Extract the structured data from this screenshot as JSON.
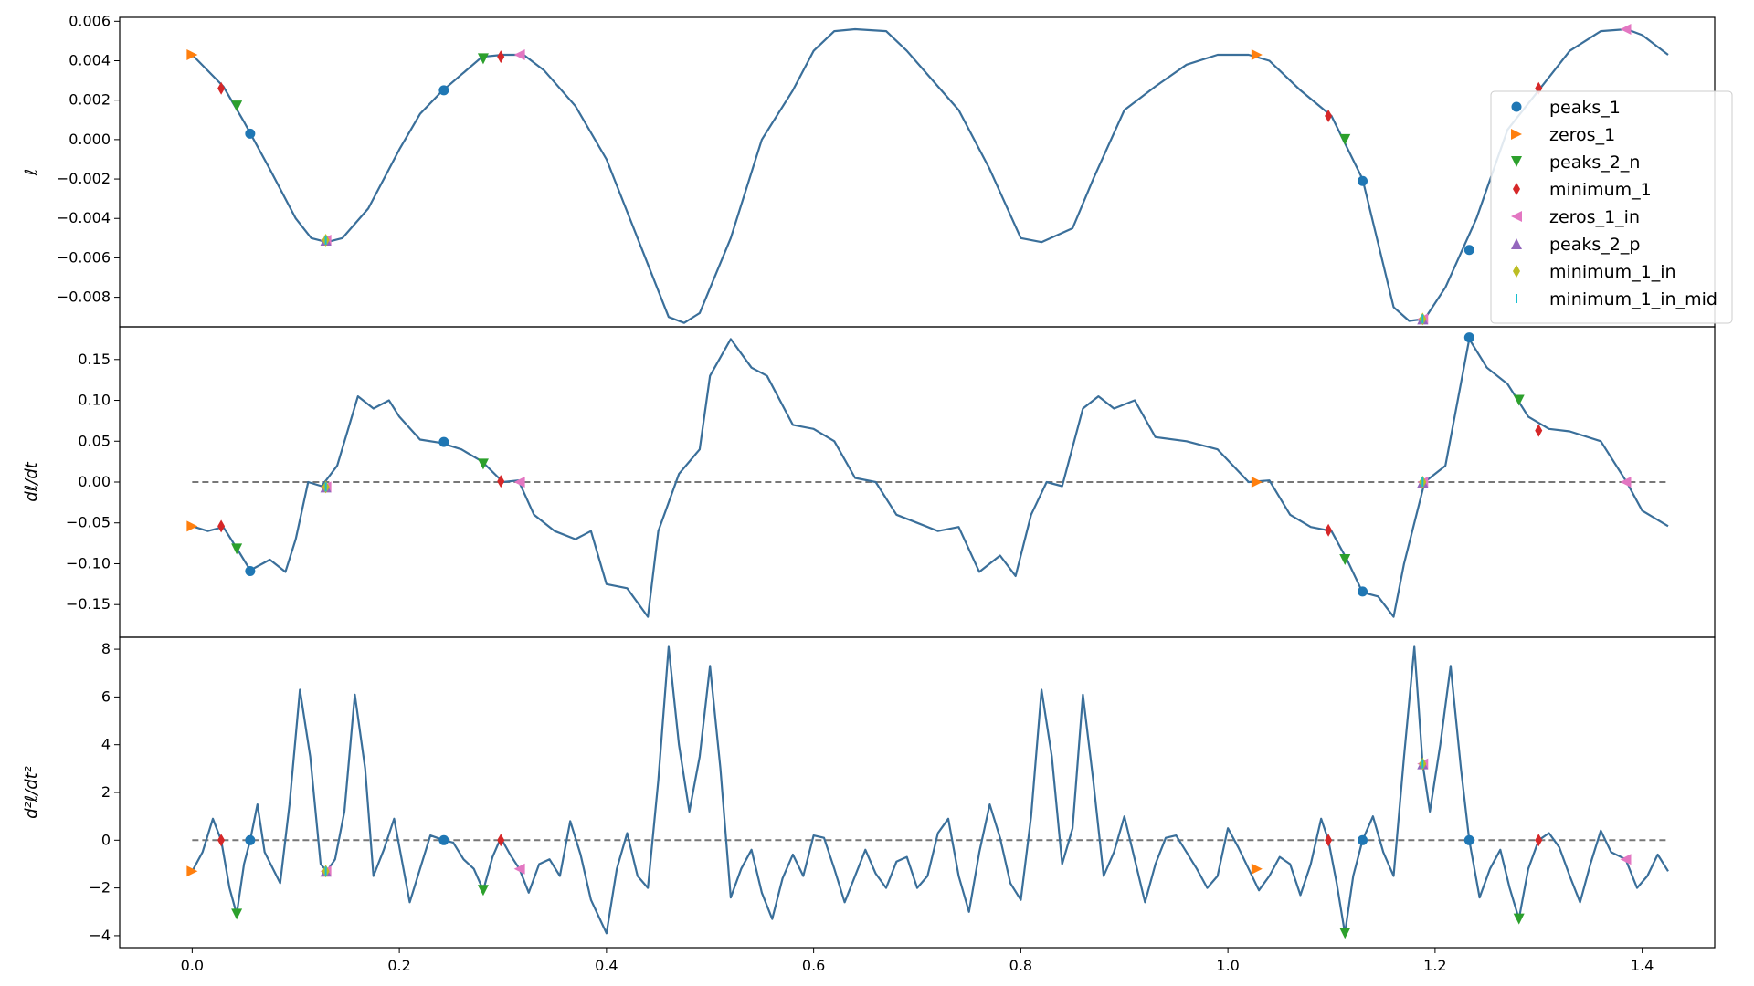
{
  "chart_data": [
    {
      "type": "line",
      "panel": "top",
      "ylabel": "ℓ",
      "xlim": [
        -0.07,
        1.47
      ],
      "ylim": [
        -0.0095,
        0.0062
      ],
      "yticks": [
        0.006,
        0.004,
        0.002,
        0.0,
        -0.002,
        -0.004,
        -0.006,
        -0.008
      ],
      "ytick_labels": [
        "0.006",
        "0.004",
        "0.002",
        "0.000",
        "−0.002",
        "−0.004",
        "−0.006",
        "−0.008"
      ],
      "legend_position": "right, middle",
      "series": [
        {
          "name": "",
          "color": "#3a6f9a",
          "x": [
            0.0,
            0.03,
            0.05,
            0.075,
            0.1,
            0.115,
            0.13,
            0.145,
            0.17,
            0.2,
            0.22,
            0.24,
            0.26,
            0.28,
            0.3,
            0.32,
            0.34,
            0.37,
            0.4,
            0.43,
            0.46,
            0.475,
            0.49,
            0.52,
            0.55,
            0.58,
            0.6,
            0.62,
            0.64,
            0.67,
            0.69,
            0.71,
            0.74,
            0.77,
            0.8,
            0.82,
            0.85,
            0.87,
            0.9,
            0.93,
            0.96,
            0.99,
            1.02,
            1.04,
            1.07,
            1.1,
            1.13,
            1.16,
            1.175,
            1.19,
            1.21,
            1.24,
            1.27,
            1.3,
            1.33,
            1.36,
            1.385,
            1.4,
            1.425
          ],
          "y": [
            0.0043,
            0.0027,
            0.0009,
            -0.0015,
            -0.004,
            -0.005,
            -0.0052,
            -0.005,
            -0.0035,
            -0.0005,
            0.0013,
            0.0024,
            0.0033,
            0.0042,
            0.0043,
            0.0043,
            0.0035,
            0.0017,
            -0.001,
            -0.005,
            -0.009,
            -0.0093,
            -0.0088,
            -0.005,
            0.0,
            0.0025,
            0.0045,
            0.0055,
            0.0056,
            0.0055,
            0.0045,
            0.0033,
            0.0015,
            -0.0015,
            -0.005,
            -0.0052,
            -0.0045,
            -0.002,
            0.0015,
            0.0027,
            0.0038,
            0.0043,
            0.0043,
            0.004,
            0.0025,
            0.0012,
            -0.002,
            -0.0085,
            -0.0092,
            -0.0091,
            -0.0075,
            -0.004,
            0.0005,
            0.0025,
            0.0045,
            0.0055,
            0.0056,
            0.0053,
            0.0043
          ]
        }
      ],
      "markers": [
        {
          "name": "peaks_1",
          "x": [
            0.056,
            0.243,
            1.13,
            1.233
          ],
          "y": [
            0.0003,
            0.0025,
            -0.0021,
            -0.0056
          ]
        },
        {
          "name": "zeros_1",
          "x": [
            0.0,
            1.028
          ],
          "y": [
            0.0043,
            0.0043
          ]
        },
        {
          "name": "peaks_2_n",
          "x": [
            0.043,
            0.281,
            1.113
          ],
          "y": [
            0.0017,
            0.0041,
            0.0
          ]
        },
        {
          "name": "minimum_1",
          "x": [
            0.028,
            0.298,
            1.097,
            1.3
          ],
          "y": [
            0.0026,
            0.0042,
            0.0012,
            0.0026
          ]
        },
        {
          "name": "zeros_1_in",
          "x": [
            0.316,
            1.384,
            0.129,
            1.188
          ],
          "y": [
            0.0043,
            0.0056,
            -0.0051,
            -0.0091
          ]
        },
        {
          "name": "peaks_2_p",
          "x": [
            0.129,
            1.188
          ],
          "y": [
            -0.0051,
            -0.0091
          ]
        },
        {
          "name": "minimum_1_in",
          "x": [
            0.129,
            1.188
          ],
          "y": [
            -0.0051,
            -0.0091
          ]
        },
        {
          "name": "minimum_1_in_mid",
          "x": [
            0.129,
            1.188
          ],
          "y": [
            -0.0051,
            -0.0091
          ]
        }
      ]
    },
    {
      "type": "line",
      "panel": "middle",
      "ylabel": "dℓ/dt",
      "xlim": [
        -0.07,
        1.47
      ],
      "ylim": [
        -0.19,
        0.19
      ],
      "yticks": [
        0.15,
        0.1,
        0.05,
        0.0,
        -0.05,
        -0.1,
        -0.15
      ],
      "ytick_labels": [
        "0.15",
        "0.10",
        "0.05",
        "0.00",
        "−0.05",
        "−0.10",
        "−0.15"
      ],
      "hline": {
        "y": 0.0,
        "style": "dashed",
        "x": [
          0.0,
          1.425
        ]
      },
      "series": [
        {
          "name": "",
          "color": "#3a6f9a",
          "x": [
            0.0,
            0.015,
            0.03,
            0.045,
            0.056,
            0.075,
            0.09,
            0.1,
            0.112,
            0.125,
            0.14,
            0.16,
            0.175,
            0.19,
            0.2,
            0.22,
            0.24,
            0.26,
            0.28,
            0.3,
            0.315,
            0.33,
            0.35,
            0.37,
            0.385,
            0.4,
            0.42,
            0.44,
            0.45,
            0.47,
            0.49,
            0.5,
            0.52,
            0.54,
            0.555,
            0.58,
            0.6,
            0.62,
            0.64,
            0.66,
            0.68,
            0.7,
            0.72,
            0.74,
            0.76,
            0.78,
            0.795,
            0.81,
            0.825,
            0.84,
            0.86,
            0.875,
            0.89,
            0.91,
            0.93,
            0.96,
            0.99,
            1.02,
            1.04,
            1.06,
            1.08,
            1.1,
            1.115,
            1.13,
            1.145,
            1.16,
            1.17,
            1.19,
            1.21,
            1.233,
            1.25,
            1.27,
            1.29,
            1.31,
            1.33,
            1.36,
            1.385,
            1.4,
            1.425
          ],
          "y": [
            -0.054,
            -0.06,
            -0.055,
            -0.085,
            -0.108,
            -0.095,
            -0.11,
            -0.07,
            0.0,
            -0.005,
            0.02,
            0.105,
            0.09,
            0.1,
            0.08,
            0.052,
            0.048,
            0.04,
            0.025,
            0.0,
            0.002,
            -0.04,
            -0.06,
            -0.07,
            -0.06,
            -0.125,
            -0.13,
            -0.165,
            -0.06,
            0.01,
            0.04,
            0.13,
            0.175,
            0.14,
            0.13,
            0.07,
            0.065,
            0.05,
            0.005,
            0.0,
            -0.04,
            -0.05,
            -0.06,
            -0.055,
            -0.11,
            -0.09,
            -0.115,
            -0.04,
            0.0,
            -0.005,
            0.09,
            0.105,
            0.09,
            0.1,
            0.055,
            0.05,
            0.04,
            0.0,
            0.002,
            -0.04,
            -0.055,
            -0.06,
            -0.095,
            -0.135,
            -0.14,
            -0.165,
            -0.1,
            0.0,
            0.02,
            0.175,
            0.14,
            0.12,
            0.08,
            0.065,
            0.062,
            0.05,
            0.0,
            -0.035,
            -0.054
          ]
        }
      ],
      "markers": [
        {
          "name": "peaks_1",
          "x": [
            0.056,
            0.243,
            1.13,
            1.233
          ],
          "y": [
            -0.109,
            0.049,
            -0.134,
            0.177
          ]
        },
        {
          "name": "zeros_1",
          "x": [
            0.0,
            1.028
          ],
          "y": [
            -0.054,
            0.0
          ]
        },
        {
          "name": "peaks_2_n",
          "x": [
            0.043,
            0.281,
            1.113,
            1.281
          ],
          "y": [
            -0.082,
            0.022,
            -0.095,
            0.1
          ]
        },
        {
          "name": "minimum_1",
          "x": [
            0.028,
            0.298,
            1.097,
            1.3
          ],
          "y": [
            -0.054,
            0.001,
            -0.059,
            0.063
          ]
        },
        {
          "name": "zeros_1_in",
          "x": [
            0.316,
            1.384,
            0.129,
            1.188
          ],
          "y": [
            0.0,
            0.0,
            -0.006,
            0.0
          ]
        },
        {
          "name": "peaks_2_p",
          "x": [
            0.129,
            1.188
          ],
          "y": [
            -0.006,
            0.0
          ]
        },
        {
          "name": "minimum_1_in",
          "x": [
            0.129,
            1.188
          ],
          "y": [
            -0.006,
            0.0
          ]
        },
        {
          "name": "minimum_1_in_mid",
          "x": [
            0.129,
            1.188
          ],
          "y": [
            -0.006,
            0.0
          ]
        }
      ]
    },
    {
      "type": "line",
      "panel": "bottom",
      "ylabel": "d²ℓ/dt²",
      "xlim": [
        -0.07,
        1.47
      ],
      "ylim": [
        -4.5,
        8.5
      ],
      "yticks": [
        8,
        6,
        4,
        2,
        0,
        -2,
        -4
      ],
      "ytick_labels": [
        "8",
        "6",
        "4",
        "2",
        "0",
        "−2",
        "−4"
      ],
      "xticks": [
        0.0,
        0.2,
        0.4,
        0.6,
        0.8,
        1.0,
        1.2,
        1.4
      ],
      "xtick_labels": [
        "0.0",
        "0.2",
        "0.4",
        "0.6",
        "0.8",
        "1.0",
        "1.2",
        "1.4"
      ],
      "hline": {
        "y": 0.0,
        "style": "dashed",
        "x": [
          0.0,
          1.425
        ]
      },
      "series": [
        {
          "name": "",
          "color": "#3a6f9a",
          "x": [
            0.0,
            0.01,
            0.02,
            0.028,
            0.036,
            0.043,
            0.05,
            0.056,
            0.063,
            0.07,
            0.085,
            0.094,
            0.104,
            0.114,
            0.124,
            0.13,
            0.138,
            0.147,
            0.157,
            0.167,
            0.175,
            0.185,
            0.195,
            0.21,
            0.22,
            0.23,
            0.243,
            0.252,
            0.262,
            0.272,
            0.281,
            0.29,
            0.298,
            0.307,
            0.316,
            0.325,
            0.335,
            0.345,
            0.355,
            0.365,
            0.375,
            0.385,
            0.4,
            0.41,
            0.42,
            0.43,
            0.44,
            0.45,
            0.46,
            0.47,
            0.48,
            0.49,
            0.5,
            0.51,
            0.52,
            0.53,
            0.54,
            0.55,
            0.56,
            0.57,
            0.58,
            0.59,
            0.6,
            0.61,
            0.62,
            0.63,
            0.64,
            0.65,
            0.66,
            0.67,
            0.68,
            0.69,
            0.7,
            0.71,
            0.72,
            0.73,
            0.74,
            0.75,
            0.76,
            0.77,
            0.78,
            0.79,
            0.8,
            0.81,
            0.82,
            0.83,
            0.84,
            0.85,
            0.86,
            0.87,
            0.88,
            0.89,
            0.9,
            0.91,
            0.92,
            0.93,
            0.94,
            0.95,
            0.96,
            0.97,
            0.98,
            0.99,
            1.0,
            1.01,
            1.02,
            1.03,
            1.04,
            1.05,
            1.06,
            1.07,
            1.08,
            1.09,
            1.097,
            1.105,
            1.113,
            1.121,
            1.13,
            1.14,
            1.15,
            1.16,
            1.17,
            1.18,
            1.188,
            1.195,
            1.205,
            1.215,
            1.225,
            1.233,
            1.243,
            1.253,
            1.263,
            1.272,
            1.281,
            1.29,
            1.3,
            1.31,
            1.32,
            1.33,
            1.34,
            1.35,
            1.36,
            1.37,
            1.384,
            1.395,
            1.405,
            1.415,
            1.425
          ],
          "y": [
            -1.3,
            -0.5,
            0.9,
            0.0,
            -2.0,
            -3.1,
            -1.0,
            0.0,
            1.5,
            -0.5,
            -1.8,
            1.5,
            6.3,
            3.5,
            -1.0,
            -1.3,
            -0.8,
            1.2,
            6.1,
            3.0,
            -1.5,
            -0.4,
            0.9,
            -2.6,
            -1.2,
            0.2,
            0.0,
            -0.1,
            -0.8,
            -1.2,
            -2.1,
            -0.7,
            0.1,
            -0.6,
            -1.2,
            -2.2,
            -1.0,
            -0.8,
            -1.5,
            0.8,
            -0.6,
            -2.5,
            -3.9,
            -1.2,
            0.3,
            -1.5,
            -2.0,
            2.5,
            8.1,
            4.0,
            1.2,
            3.5,
            7.3,
            3.0,
            -2.4,
            -1.2,
            -0.4,
            -2.2,
            -3.3,
            -1.6,
            -0.6,
            -1.5,
            0.2,
            0.1,
            -1.2,
            -2.6,
            -1.5,
            -0.4,
            -1.4,
            -2.0,
            -0.9,
            -0.7,
            -2.0,
            -1.5,
            0.3,
            0.9,
            -1.5,
            -3.0,
            -0.5,
            1.5,
            0.1,
            -1.8,
            -2.5,
            1.0,
            6.3,
            3.5,
            -1.0,
            0.5,
            6.1,
            2.5,
            -1.5,
            -0.5,
            1.0,
            -0.8,
            -2.6,
            -1.0,
            0.1,
            0.2,
            -0.5,
            -1.2,
            -2.0,
            -1.5,
            0.5,
            -0.3,
            -1.2,
            -2.1,
            -1.5,
            -0.7,
            -1.0,
            -2.3,
            -1.0,
            0.9,
            0.0,
            -1.8,
            -3.9,
            -1.5,
            0.0,
            1.0,
            -0.5,
            -1.5,
            3.5,
            8.1,
            3.2,
            1.2,
            4.0,
            7.3,
            3.0,
            0.0,
            -2.4,
            -1.2,
            -0.4,
            -2.0,
            -3.3,
            -1.2,
            0.0,
            0.3,
            -0.3,
            -1.5,
            -2.6,
            -1.0,
            0.4,
            -0.5,
            -0.8,
            -2.0,
            -1.5,
            -0.6,
            -1.3
          ]
        }
      ],
      "markers": [
        {
          "name": "peaks_1",
          "x": [
            0.056,
            0.243,
            1.13,
            1.233
          ],
          "y": [
            0.0,
            0.0,
            0.0,
            0.0
          ]
        },
        {
          "name": "zeros_1",
          "x": [
            0.0,
            1.028
          ],
          "y": [
            -1.3,
            -1.2
          ]
        },
        {
          "name": "peaks_2_n",
          "x": [
            0.043,
            0.281,
            1.113,
            1.281
          ],
          "y": [
            -3.1,
            -2.1,
            -3.9,
            -3.3
          ]
        },
        {
          "name": "minimum_1",
          "x": [
            0.028,
            0.298,
            1.097,
            1.3
          ],
          "y": [
            0.0,
            0.0,
            0.0,
            0.0
          ]
        },
        {
          "name": "zeros_1_in",
          "x": [
            0.316,
            1.384,
            0.129,
            1.188
          ],
          "y": [
            -1.2,
            -0.8,
            -1.3,
            3.2
          ]
        },
        {
          "name": "peaks_2_p",
          "x": [
            0.129,
            1.188
          ],
          "y": [
            -1.3,
            3.2
          ]
        },
        {
          "name": "minimum_1_in",
          "x": [
            0.129,
            1.188
          ],
          "y": [
            -1.3,
            3.2
          ]
        },
        {
          "name": "minimum_1_in_mid",
          "x": [
            0.129,
            1.188
          ],
          "y": [
            -1.3,
            3.2
          ]
        }
      ]
    }
  ],
  "legend": [
    {
      "label": "peaks_1",
      "marker": "circle",
      "color": "#1f77b4"
    },
    {
      "label": "zeros_1",
      "marker": "triangle-right",
      "color": "#ff7f0e"
    },
    {
      "label": "peaks_2_n",
      "marker": "triangle-down",
      "color": "#2ca02c"
    },
    {
      "label": "minimum_1",
      "marker": "thin-diamond",
      "color": "#d62728"
    },
    {
      "label": "zeros_1_in",
      "marker": "triangle-left",
      "color": "#e377c2"
    },
    {
      "label": "peaks_2_p",
      "marker": "triangle-up",
      "color": "#9467bd"
    },
    {
      "label": "minimum_1_in",
      "marker": "thin-diamond",
      "color": "#bcbd22"
    },
    {
      "label": "minimum_1_in_mid",
      "marker": "vline",
      "color": "#17becf"
    }
  ]
}
